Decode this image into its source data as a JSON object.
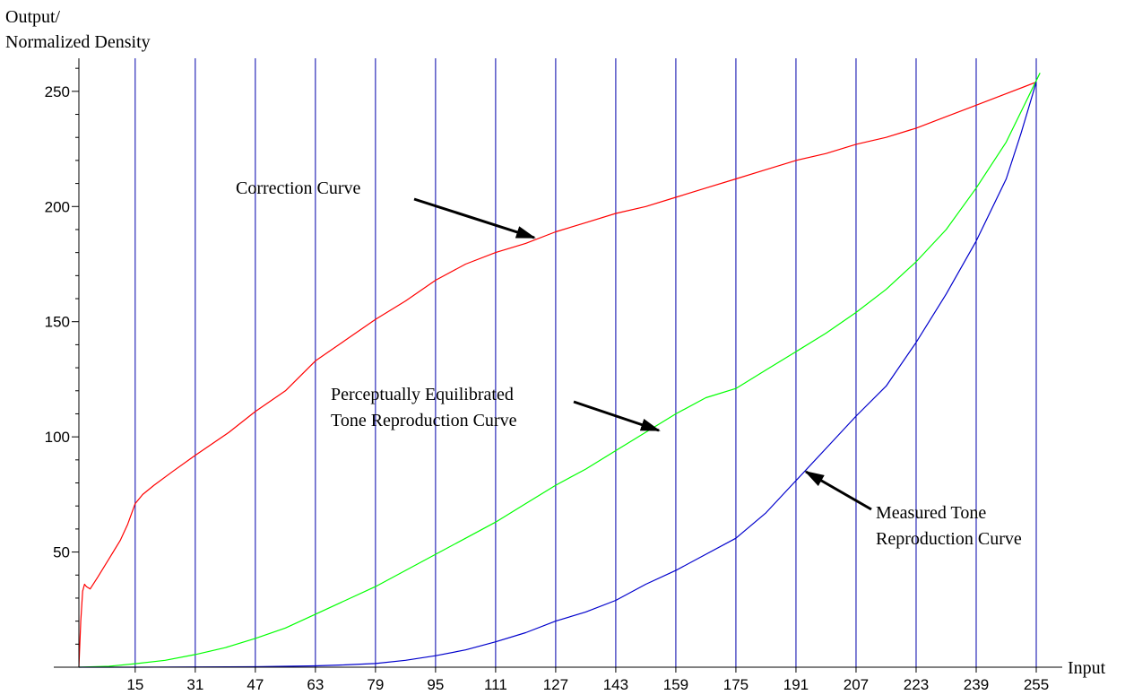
{
  "chart_data": {
    "type": "line",
    "ylabel_line1": "Output/",
    "ylabel_line2": "Normalized Density",
    "xlabel": "Input",
    "xlim": [
      0,
      262
    ],
    "ylim": [
      0,
      262
    ],
    "x_ticks": [
      15,
      31,
      47,
      63,
      79,
      95,
      111,
      127,
      143,
      159,
      175,
      191,
      207,
      223,
      239,
      255
    ],
    "y_ticks": [
      50,
      100,
      150,
      200,
      250
    ],
    "vertical_gridlines_at": [
      15,
      31,
      47,
      63,
      79,
      95,
      111,
      127,
      143,
      159,
      175,
      191,
      207,
      223,
      239,
      255
    ],
    "gridline_color": "#0000aa",
    "series": [
      {
        "name": "Correction Curve",
        "color": "#ff0000",
        "points": [
          [
            0,
            0
          ],
          [
            0.5,
            20
          ],
          [
            1,
            33
          ],
          [
            1.5,
            36
          ],
          [
            2,
            35
          ],
          [
            3,
            34
          ],
          [
            5,
            39
          ],
          [
            8,
            47
          ],
          [
            11,
            55
          ],
          [
            13,
            62
          ],
          [
            15,
            71
          ],
          [
            17,
            75
          ],
          [
            20,
            79
          ],
          [
            25,
            85
          ],
          [
            31,
            92
          ],
          [
            40,
            102
          ],
          [
            47,
            111
          ],
          [
            55,
            120
          ],
          [
            63,
            133
          ],
          [
            71,
            142
          ],
          [
            79,
            151
          ],
          [
            87,
            159
          ],
          [
            95,
            168
          ],
          [
            103,
            175
          ],
          [
            111,
            180
          ],
          [
            119,
            184
          ],
          [
            127,
            189
          ],
          [
            135,
            193
          ],
          [
            143,
            197
          ],
          [
            151,
            200
          ],
          [
            159,
            204
          ],
          [
            167,
            208
          ],
          [
            175,
            212
          ],
          [
            183,
            216
          ],
          [
            191,
            220
          ],
          [
            199,
            223
          ],
          [
            207,
            227
          ],
          [
            215,
            230
          ],
          [
            223,
            234
          ],
          [
            231,
            239
          ],
          [
            239,
            244
          ],
          [
            247,
            249
          ],
          [
            255,
            254
          ]
        ]
      },
      {
        "name": "Perceptually Equilibrated Tone Reproduction Curve",
        "color": "#00ff00",
        "points": [
          [
            0,
            0
          ],
          [
            8,
            0.4
          ],
          [
            15,
            1.5
          ],
          [
            23,
            3
          ],
          [
            31,
            5.5
          ],
          [
            39,
            8.5
          ],
          [
            47,
            12.5
          ],
          [
            55,
            17
          ],
          [
            63,
            23
          ],
          [
            71,
            29
          ],
          [
            79,
            35
          ],
          [
            87,
            42
          ],
          [
            95,
            49
          ],
          [
            103,
            56
          ],
          [
            111,
            63
          ],
          [
            119,
            71
          ],
          [
            127,
            79
          ],
          [
            135,
            86
          ],
          [
            143,
            94
          ],
          [
            151,
            102
          ],
          [
            159,
            110
          ],
          [
            167,
            117
          ],
          [
            175,
            121
          ],
          [
            183,
            129
          ],
          [
            191,
            137
          ],
          [
            199,
            145
          ],
          [
            207,
            154
          ],
          [
            215,
            164
          ],
          [
            223,
            176
          ],
          [
            231,
            190
          ],
          [
            239,
            208
          ],
          [
            247,
            228
          ],
          [
            256,
            258
          ]
        ]
      },
      {
        "name": "Measured Tone Reproduction Curve",
        "color": "#0000cc",
        "points": [
          [
            0,
            0
          ],
          [
            15,
            0
          ],
          [
            31,
            0.1
          ],
          [
            47,
            0.2
          ],
          [
            63,
            0.6
          ],
          [
            71,
            1
          ],
          [
            79,
            1.6
          ],
          [
            87,
            3
          ],
          [
            95,
            5
          ],
          [
            103,
            7.5
          ],
          [
            111,
            11
          ],
          [
            119,
            15
          ],
          [
            127,
            20
          ],
          [
            135,
            24
          ],
          [
            143,
            29
          ],
          [
            151,
            36
          ],
          [
            159,
            42
          ],
          [
            167,
            49
          ],
          [
            175,
            56
          ],
          [
            183,
            67
          ],
          [
            191,
            81
          ],
          [
            199,
            95
          ],
          [
            207,
            109
          ],
          [
            215,
            122
          ],
          [
            223,
            141
          ],
          [
            231,
            162
          ],
          [
            239,
            185
          ],
          [
            247,
            212
          ],
          [
            251,
            232
          ],
          [
            255,
            254
          ]
        ]
      }
    ],
    "annotations": [
      {
        "line1": "Correction Curve",
        "line2": ""
      },
      {
        "line1": "Perceptually Equilibrated",
        "line2": "Tone Reproduction Curve"
      },
      {
        "line1": "Measured Tone",
        "line2": "Reproduction Curve"
      }
    ]
  }
}
